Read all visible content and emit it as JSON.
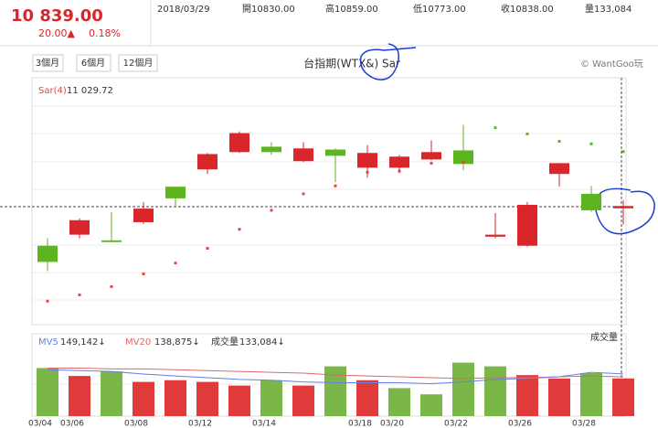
{
  "header": {
    "price": "10 839.00",
    "change": "20.00▲",
    "pct": "0.18%",
    "date": "2018/03/29",
    "open": "開10830.00",
    "high": "高10859.00",
    "low": "低10773.00",
    "close": "收10838.00",
    "volume": "量133,084"
  },
  "buttons": [
    "3個月",
    "6個月",
    "12個月"
  ],
  "copyright": "© WantGoo玩",
  "chart_data": {
    "type": "candlestick",
    "title": "台指期(WTX&) Sar",
    "categories": [
      "03/04",
      "03/06",
      null,
      "03/08",
      null,
      "03/12",
      null,
      "03/14",
      null,
      null,
      "03/18",
      "03/20",
      null,
      "03/22",
      null,
      "03/26",
      null,
      "03/28",
      null
    ],
    "open": [
      10698,
      10737,
      10717,
      10781,
      10906,
      10967,
      11028,
      11047,
      10996,
      11037,
      10973,
      10973,
      11002,
      11034,
      10730,
      10698,
      10951,
      10881,
      10830
    ],
    "high": [
      10724,
      10794,
      10817,
      10852,
      10906,
      11025,
      11101,
      11063,
      11063,
      11041,
      11053,
      11018,
      11069,
      11124,
      10813,
      10852,
      10989,
      10909,
      10859
    ],
    "low": [
      10609,
      10724,
      10711,
      10775,
      10833,
      10951,
      11025,
      11018,
      10993,
      10922,
      10938,
      10954,
      10999,
      10964,
      10724,
      10695,
      10906,
      10817,
      10773
    ],
    "close": [
      10641,
      10788,
      10711,
      10829,
      10865,
      11021,
      11095,
      11028,
      11041,
      11015,
      11025,
      11012,
      11028,
      10986,
      10737,
      10842,
      10989,
      10823,
      10838
    ],
    "up_color": "#d9262b",
    "down_color": "#5cb41e",
    "ylim": [
      10420,
      11290
    ],
    "sar": {
      "name": "Sar(4)",
      "label": "11 029.72",
      "values": [
        10503,
        10525,
        10554,
        10599,
        10637,
        10689,
        10756,
        10823,
        10881,
        10909,
        10957,
        10961,
        10989,
        10993,
        11114,
        11092,
        11066,
        11057,
        11029.72
      ],
      "above_color": "#5cb41e",
      "below_color": "#e8433f"
    },
    "volume": {
      "name": "成交量",
      "label": "133,084↓",
      "ylim": [
        0,
        220000
      ],
      "values": [
        170000,
        142000,
        158000,
        121000,
        127000,
        121000,
        108000,
        127000,
        108000,
        176000,
        127000,
        99000,
        77000,
        189000,
        176000,
        145000,
        133000,
        152000,
        133084
      ],
      "colors": [
        "#7ab648",
        "#e03a3a",
        "#7ab648",
        "#e03a3a",
        "#e03a3a",
        "#e03a3a",
        "#e03a3a",
        "#7ab648",
        "#e03a3a",
        "#7ab648",
        "#e03a3a",
        "#7ab648",
        "#7ab648",
        "#7ab648",
        "#7ab648",
        "#e03a3a",
        "#e03a3a",
        "#7ab648",
        "#e03a3a"
      ]
    },
    "mv5": {
      "name": "MV5",
      "label": "149,142↓",
      "color": "#6680e0",
      "values": [
        164000,
        161000,
        158000,
        149000,
        142000,
        136000,
        130000,
        127000,
        121000,
        118000,
        118000,
        118000,
        115000,
        121000,
        130000,
        133000,
        139000,
        155000,
        149142
      ]
    },
    "mv20": {
      "name": "MV20",
      "label": "138,875↓",
      "color": "#e06666",
      "values": [
        170000,
        170000,
        167000,
        167000,
        164000,
        161000,
        158000,
        155000,
        152000,
        145000,
        142000,
        139000,
        136000,
        133000,
        136000,
        136000,
        139000,
        142000,
        138875
      ]
    }
  }
}
